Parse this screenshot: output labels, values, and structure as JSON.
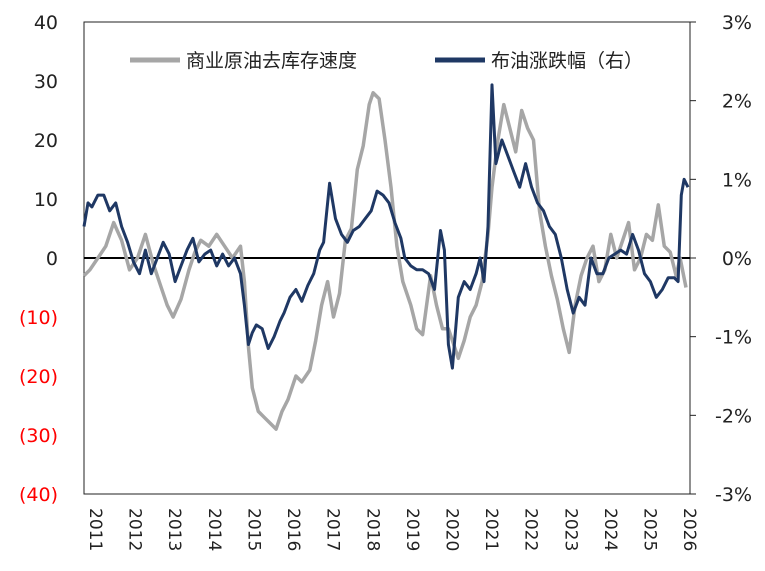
{
  "chart_data": {
    "type": "line",
    "title": "",
    "xlabel": "",
    "ylabel": "",
    "y2label": "",
    "grid": false,
    "legend_position": "top-right",
    "colors": {
      "left_series": "#a6a6a6",
      "right_series": "#1f3864",
      "negative_tick": "#ff0000",
      "tick": "#222222"
    },
    "x_ticks": [
      "2011",
      "2012",
      "2013",
      "2014",
      "2015",
      "2016",
      "2017",
      "2018",
      "2019",
      "2020",
      "2021",
      "2022",
      "2023",
      "2024",
      "2025",
      "2026"
    ],
    "x_range": [
      2011,
      2026.3
    ],
    "left_axis": {
      "ylim": [
        -40,
        40
      ],
      "ticks": [
        {
          "value": 40,
          "label": "40",
          "negative": false
        },
        {
          "value": 30,
          "label": "30",
          "negative": false
        },
        {
          "value": 20,
          "label": "20",
          "negative": false
        },
        {
          "value": 10,
          "label": "10",
          "negative": false
        },
        {
          "value": 0,
          "label": "0",
          "negative": false
        },
        {
          "value": -10,
          "label": "(10)",
          "negative": true
        },
        {
          "value": -20,
          "label": "(20)",
          "negative": true
        },
        {
          "value": -30,
          "label": "(30)",
          "negative": true
        },
        {
          "value": -40,
          "label": "(40)",
          "negative": true
        }
      ]
    },
    "right_axis": {
      "ylim": [
        -3,
        3
      ],
      "unit": "%",
      "ticks": [
        {
          "value": 3,
          "label": "3%"
        },
        {
          "value": 2,
          "label": "2%"
        },
        {
          "value": 1,
          "label": "1%"
        },
        {
          "value": 0,
          "label": "0%"
        },
        {
          "value": -1,
          "label": "-1%"
        },
        {
          "value": -2,
          "label": "-2%"
        },
        {
          "value": -3,
          "label": "-3%"
        }
      ]
    },
    "series": [
      {
        "name": "商业原油去库存速度",
        "axis": "left",
        "x": [
          2011.0,
          2011.15,
          2011.35,
          2011.55,
          2011.75,
          2011.95,
          2012.15,
          2012.35,
          2012.55,
          2012.75,
          2012.95,
          2013.1,
          2013.25,
          2013.45,
          2013.65,
          2013.8,
          2013.95,
          2014.15,
          2014.35,
          2014.55,
          2014.75,
          2014.95,
          2015.05,
          2015.15,
          2015.25,
          2015.4,
          2015.55,
          2015.7,
          2015.85,
          2016.0,
          2016.15,
          2016.35,
          2016.5,
          2016.7,
          2016.85,
          2017.0,
          2017.15,
          2017.3,
          2017.45,
          2017.6,
          2017.75,
          2017.9,
          2018.05,
          2018.2,
          2018.3,
          2018.45,
          2018.6,
          2018.75,
          2018.9,
          2019.05,
          2019.25,
          2019.4,
          2019.55,
          2019.75,
          2019.9,
          2020.05,
          2020.2,
          2020.3,
          2020.45,
          2020.6,
          2020.75,
          2020.9,
          2021.05,
          2021.2,
          2021.3,
          2021.45,
          2021.6,
          2021.75,
          2021.9,
          2022.05,
          2022.2,
          2022.35,
          2022.5,
          2022.65,
          2022.8,
          2022.95,
          2023.1,
          2023.25,
          2023.4,
          2023.55,
          2023.7,
          2023.85,
          2024.0,
          2024.15,
          2024.3,
          2024.45,
          2024.6,
          2024.75,
          2024.9,
          2025.05,
          2025.2,
          2025.35,
          2025.5,
          2025.65,
          2025.8,
          2025.95,
          2026.05,
          2026.2
        ],
        "y": [
          -3,
          -2,
          0,
          2,
          6,
          3,
          -2,
          0,
          4,
          -1,
          -5,
          -8,
          -10,
          -7,
          -2,
          1,
          3,
          2,
          4,
          2,
          0,
          2,
          -4,
          -15,
          -22,
          -26,
          -27,
          -28,
          -29,
          -26,
          -24,
          -20,
          -21,
          -19,
          -14,
          -8,
          -4,
          -10,
          -6,
          3,
          5,
          15,
          19,
          26,
          28,
          27,
          20,
          12,
          2,
          -4,
          -8,
          -12,
          -13,
          -3,
          -8,
          -12,
          -12,
          -14,
          -17,
          -14,
          -10,
          -8,
          -4,
          4,
          12,
          20,
          26,
          22,
          18,
          25,
          22,
          20,
          8,
          2,
          -3,
          -7,
          -12,
          -16,
          -8,
          -3,
          0,
          2,
          -4,
          -2,
          4,
          0,
          3,
          6,
          -2,
          0,
          4,
          3,
          9,
          2,
          1,
          -3,
          0,
          -5
        ],
        "color": "#a6a6a6"
      },
      {
        "name": "布油涨跌幅（右）",
        "axis": "right",
        "x": [
          2011.0,
          2011.1,
          2011.2,
          2011.35,
          2011.5,
          2011.65,
          2011.8,
          2011.95,
          2012.1,
          2012.25,
          2012.4,
          2012.55,
          2012.7,
          2012.85,
          2013.0,
          2013.15,
          2013.3,
          2013.45,
          2013.6,
          2013.75,
          2013.9,
          2014.05,
          2014.2,
          2014.35,
          2014.5,
          2014.65,
          2014.8,
          2014.95,
          2015.05,
          2015.15,
          2015.25,
          2015.35,
          2015.5,
          2015.65,
          2015.8,
          2015.95,
          2016.05,
          2016.2,
          2016.35,
          2016.5,
          2016.65,
          2016.8,
          2016.95,
          2017.05,
          2017.2,
          2017.35,
          2017.5,
          2017.65,
          2017.8,
          2017.95,
          2018.1,
          2018.25,
          2018.4,
          2018.55,
          2018.7,
          2018.85,
          2019.0,
          2019.1,
          2019.25,
          2019.4,
          2019.55,
          2019.7,
          2019.85,
          2020.0,
          2020.1,
          2020.2,
          2020.3,
          2020.45,
          2020.6,
          2020.75,
          2020.9,
          2021.0,
          2021.1,
          2021.2,
          2021.3,
          2021.4,
          2021.55,
          2021.7,
          2021.85,
          2022.0,
          2022.15,
          2022.3,
          2022.45,
          2022.6,
          2022.75,
          2022.9,
          2023.05,
          2023.2,
          2023.35,
          2023.5,
          2023.65,
          2023.8,
          2023.95,
          2024.1,
          2024.25,
          2024.4,
          2024.55,
          2024.7,
          2024.85,
          2025.0,
          2025.15,
          2025.3,
          2025.45,
          2025.6,
          2025.75,
          2025.9,
          2026.0,
          2026.08,
          2026.15,
          2026.25
        ],
        "y": [
          0.4,
          0.7,
          0.65,
          0.8,
          0.8,
          0.6,
          0.7,
          0.4,
          0.2,
          -0.05,
          -0.2,
          0.1,
          -0.2,
          0.0,
          0.2,
          0.05,
          -0.3,
          -0.1,
          0.1,
          0.25,
          -0.05,
          0.05,
          0.1,
          -0.1,
          0.05,
          -0.1,
          0.0,
          -0.2,
          -0.6,
          -1.1,
          -0.95,
          -0.85,
          -0.9,
          -1.15,
          -1.0,
          -0.8,
          -0.7,
          -0.5,
          -0.4,
          -0.55,
          -0.35,
          -0.2,
          0.1,
          0.2,
          0.95,
          0.5,
          0.3,
          0.2,
          0.35,
          0.4,
          0.5,
          0.6,
          0.85,
          0.8,
          0.7,
          0.45,
          0.25,
          0.0,
          -0.1,
          -0.15,
          -0.15,
          -0.2,
          -0.4,
          0.35,
          0.1,
          -1.1,
          -1.4,
          -0.5,
          -0.3,
          -0.4,
          -0.2,
          0.0,
          -0.3,
          0.4,
          2.2,
          1.2,
          1.5,
          1.3,
          1.1,
          0.9,
          1.2,
          0.9,
          0.7,
          0.6,
          0.4,
          0.3,
          0.0,
          -0.4,
          -0.7,
          -0.5,
          -0.6,
          0.0,
          -0.2,
          -0.2,
          0.0,
          0.05,
          0.1,
          0.05,
          0.3,
          0.1,
          -0.2,
          -0.3,
          -0.5,
          -0.4,
          -0.25,
          -0.25,
          -0.3,
          0.8,
          1.0,
          0.9
        ],
        "color": "#1f3864"
      }
    ]
  }
}
